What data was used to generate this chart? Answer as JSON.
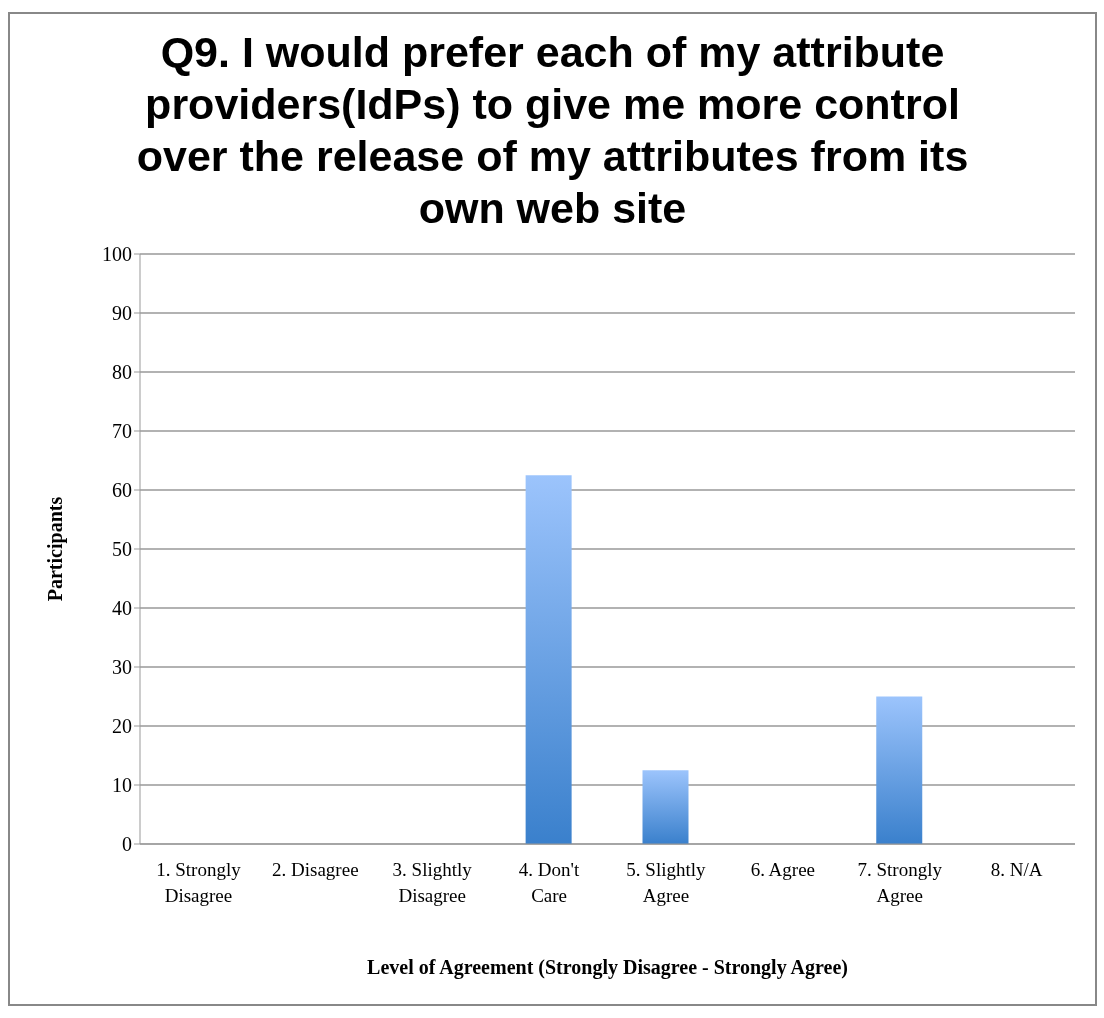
{
  "chart_data": {
    "type": "bar",
    "title": "Q9. I would prefer each of my attribute providers(IdPs) to give me more control over the release of my attributes from its own web site",
    "xlabel": "Level of Agreement (Strongly Disagree - Strongly Agree)",
    "ylabel": "Participants",
    "categories": [
      "1. Strongly Disagree",
      "2. Disagree",
      "3. Slightly Disagree",
      "4. Don't Care",
      "5. Slightly Agree",
      "6. Agree",
      "7. Strongly Agree",
      "8. N/A"
    ],
    "values": [
      0,
      0,
      0,
      62.5,
      12.5,
      0,
      25,
      0
    ],
    "color": "#3a80cc",
    "ylim": [
      0,
      100
    ],
    "yticks": [
      0,
      10,
      20,
      30,
      40,
      50,
      60,
      70,
      80,
      90,
      100
    ],
    "grid": "y",
    "legend": false
  }
}
